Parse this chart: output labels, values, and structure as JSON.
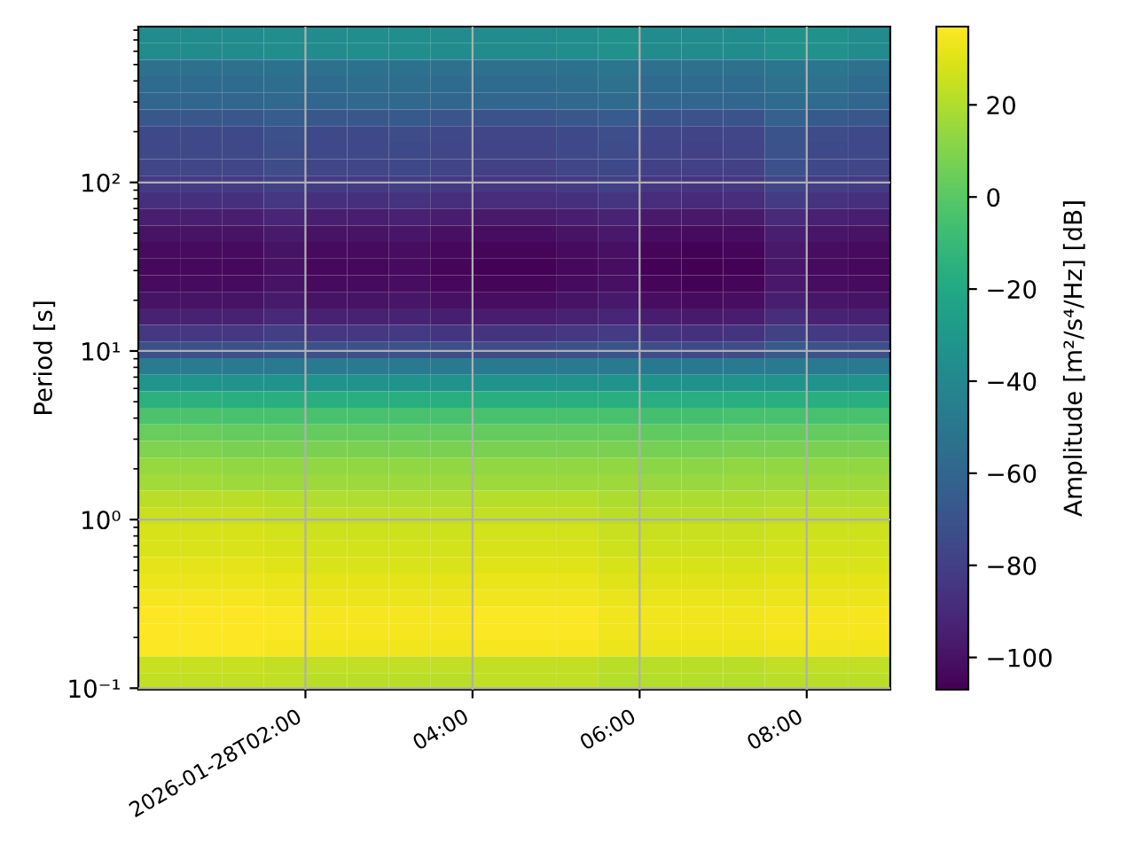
{
  "chart_data": {
    "type": "heatmap",
    "ylabel": "Period [s]",
    "clabel": "Amplitude [m²/s⁴/Hz] [dB]",
    "x": [
      "2026-01-28T00:15",
      "2026-01-28T00:45",
      "2026-01-28T01:15",
      "2026-01-28T01:45",
      "2026-01-28T02:15",
      "2026-01-28T02:45",
      "2026-01-28T03:15",
      "2026-01-28T03:45",
      "2026-01-28T04:15",
      "2026-01-28T04:45",
      "2026-01-28T05:15",
      "2026-01-28T05:45",
      "2026-01-28T06:15",
      "2026-01-28T06:45",
      "2026-01-28T07:15",
      "2026-01-28T07:45",
      "2026-01-28T08:15",
      "2026-01-28T08:45"
    ],
    "xlim": [
      "2026-01-28T00:00",
      "2026-01-28T09:00"
    ],
    "xticks": [
      {
        "value": "2026-01-28T02:00",
        "label": "2026-01-28T02:00"
      },
      {
        "value": "2026-01-28T04:00",
        "label": "04:00"
      },
      {
        "value": "2026-01-28T06:00",
        "label": "06:00"
      },
      {
        "value": "2026-01-28T08:00",
        "label": "08:00"
      }
    ],
    "log": "y",
    "ylim": [
      0.098,
      840
    ],
    "yticks": [
      {
        "value": 0.1,
        "label": "10⁻¹"
      },
      {
        "value": 1,
        "label": "10⁰"
      },
      {
        "value": 10,
        "label": "10¹"
      },
      {
        "value": 100,
        "label": "10²"
      },
      {
        "value": 0.2,
        "label": null
      },
      {
        "value": 0.3,
        "label": null
      },
      {
        "value": 0.4,
        "label": null
      },
      {
        "value": 0.5,
        "label": null
      },
      {
        "value": 0.6,
        "label": null
      },
      {
        "value": 0.7,
        "label": null
      },
      {
        "value": 0.8,
        "label": null
      },
      {
        "value": 0.9,
        "label": null
      },
      {
        "value": 2,
        "label": null
      },
      {
        "value": 3,
        "label": null
      },
      {
        "value": 4,
        "label": null
      },
      {
        "value": 5,
        "label": null
      },
      {
        "value": 6,
        "label": null
      },
      {
        "value": 7,
        "label": null
      },
      {
        "value": 8,
        "label": null
      },
      {
        "value": 9,
        "label": null
      },
      {
        "value": 20,
        "label": null
      },
      {
        "value": 30,
        "label": null
      },
      {
        "value": 40,
        "label": null
      },
      {
        "value": 50,
        "label": null
      },
      {
        "value": 60,
        "label": null
      },
      {
        "value": 70,
        "label": null
      },
      {
        "value": 80,
        "label": null
      },
      {
        "value": 90,
        "label": null
      },
      {
        "value": 200,
        "label": null
      },
      {
        "value": 300,
        "label": null
      },
      {
        "value": 400,
        "label": null
      },
      {
        "value": 500,
        "label": null
      },
      {
        "value": 600,
        "label": null
      },
      {
        "value": 700,
        "label": null
      },
      {
        "value": 800,
        "label": null
      }
    ],
    "clim": [
      -107,
      37
    ],
    "cticks": [
      -100,
      -80,
      -60,
      -40,
      -20,
      0,
      20
    ],
    "grid": true,
    "cells": [
      [
        -38,
        -38,
        -38,
        -37,
        -38,
        -37,
        -37,
        -38,
        -38,
        -38,
        -37,
        -35,
        -38,
        -38,
        -38,
        -35,
        -35,
        -38
      ],
      [
        -38,
        -38,
        -38,
        -37,
        -38,
        -37,
        -37,
        -38,
        -38,
        -38,
        -37,
        -35,
        -38,
        -38,
        -38,
        -35,
        -35,
        -38
      ],
      [
        -54,
        -54,
        -54,
        -53,
        -54,
        -53,
        -53,
        -54,
        -54,
        -54,
        -53,
        -51,
        -54,
        -54,
        -54,
        -51,
        -51,
        -54
      ],
      [
        -57,
        -57,
        -57,
        -56,
        -57,
        -56,
        -56,
        -57,
        -57,
        -57,
        -56,
        -54,
        -57,
        -57,
        -57,
        -54,
        -54,
        -57
      ],
      [
        -60,
        -60,
        -60,
        -59,
        -60,
        -59,
        -59,
        -60,
        -60,
        -60,
        -59,
        -57,
        -60,
        -60,
        -60,
        -57,
        -57,
        -60
      ],
      [
        -68,
        -68,
        -68,
        -65,
        -68,
        -68,
        -67,
        -69,
        -70,
        -70,
        -68,
        -66,
        -70,
        -71,
        -70,
        -63,
        -67,
        -68
      ],
      [
        -75,
        -75,
        -75,
        -72,
        -75,
        -75,
        -74,
        -76,
        -77,
        -77,
        -75,
        -73,
        -77,
        -78,
        -77,
        -70,
        -74,
        -75
      ],
      [
        -76,
        -76,
        -76,
        -73,
        -76,
        -76,
        -75,
        -77,
        -78,
        -78,
        -76,
        -74,
        -78,
        -79,
        -78,
        -71,
        -75,
        -76
      ],
      [
        -77,
        -77,
        -77,
        -74,
        -77,
        -77,
        -76,
        -78,
        -79,
        -79,
        -77,
        -75,
        -79,
        -80,
        -79,
        -72,
        -76,
        -77
      ],
      [
        -82,
        -82,
        -82,
        -79,
        -82,
        -82,
        -81,
        -83,
        -84,
        -84,
        -82,
        -80,
        -84,
        -85,
        -84,
        -77,
        -81,
        -82
      ],
      [
        -87,
        -87,
        -87,
        -84,
        -87,
        -87,
        -86,
        -88,
        -89,
        -89,
        -87,
        -85,
        -89,
        -90,
        -89,
        -82,
        -86,
        -87
      ],
      [
        -95,
        -95,
        -95,
        -92,
        -95,
        -95,
        -94,
        -96,
        -97,
        -97,
        -95,
        -93,
        -97,
        -98,
        -97,
        -90,
        -94,
        -95
      ],
      [
        -100,
        -100,
        -100,
        -97,
        -100,
        -100,
        -99,
        -101,
        -102,
        -102,
        -100,
        -98,
        -102,
        -103,
        -102,
        -95,
        -99,
        -100
      ],
      [
        -103,
        -103,
        -103,
        -100,
        -103,
        -103,
        -102,
        -104,
        -105,
        -105,
        -103,
        -101,
        -105,
        -106,
        -105,
        -98,
        -102,
        -103
      ],
      [
        -104,
        -104,
        -104,
        -101,
        -104,
        -104,
        -103,
        -105,
        -106,
        -106,
        -104,
        -102,
        -106,
        -107,
        -106,
        -99,
        -103,
        -104
      ],
      [
        -103,
        -103,
        -103,
        -100,
        -103,
        -103,
        -102,
        -104,
        -105,
        -105,
        -103,
        -101,
        -105,
        -106,
        -105,
        -98,
        -102,
        -103
      ],
      [
        -100,
        -100,
        -100,
        -97,
        -100,
        -100,
        -99,
        -101,
        -102,
        -102,
        -100,
        -98,
        -102,
        -103,
        -102,
        -95,
        -99,
        -100
      ],
      [
        -94,
        -94,
        -94,
        -91,
        -94,
        -94,
        -93,
        -95,
        -96,
        -96,
        -94,
        -92,
        -96,
        -97,
        -96,
        -89,
        -93,
        -94
      ],
      [
        -84,
        -84,
        -84,
        -81,
        -84,
        -84,
        -83,
        -85,
        -86,
        -86,
        -84,
        -82,
        -86,
        -87,
        -86,
        -79,
        -83,
        -84
      ],
      [
        -72,
        -72,
        -72,
        -69,
        -72,
        -72,
        -71,
        -73,
        -74,
        -74,
        -72,
        -70,
        -74,
        -75,
        -74,
        -67,
        -71,
        -72
      ],
      [
        -47,
        -47,
        -48,
        -48,
        -48,
        -48,
        -48,
        -48,
        -48,
        -48,
        -48,
        -48,
        -49,
        -49,
        -48,
        -48,
        -48,
        -48
      ],
      [
        -32,
        -32,
        -33,
        -33,
        -33,
        -33,
        -33,
        -33,
        -33,
        -33,
        -33,
        -33,
        -34,
        -34,
        -33,
        -33,
        -33,
        -33
      ],
      [
        -15,
        -15,
        -16,
        -16,
        -16,
        -16,
        -16,
        -16,
        -16,
        -16,
        -16,
        -16,
        -17,
        -17,
        -16,
        -16,
        -16,
        -16
      ],
      [
        -4,
        -4,
        -5,
        -5,
        -5,
        -5,
        -5,
        -5,
        -5,
        -5,
        -5,
        -5,
        -6,
        -6,
        -5,
        -5,
        -5,
        -5
      ],
      [
        4,
        4,
        3,
        3,
        3,
        3,
        3,
        3,
        3,
        3,
        3,
        3,
        2,
        2,
        3,
        3,
        3,
        3
      ],
      [
        9,
        9,
        8,
        8,
        8,
        8,
        8,
        8,
        8,
        8,
        8,
        8,
        7,
        7,
        8,
        8,
        8,
        8
      ],
      [
        14,
        14,
        13,
        13,
        13,
        13,
        13,
        13,
        13,
        13,
        13,
        13,
        12,
        12,
        13,
        13,
        13,
        13
      ],
      [
        17,
        17,
        16,
        16,
        16,
        16,
        16,
        16,
        16,
        16,
        16,
        16,
        15,
        15,
        16,
        16,
        16,
        16
      ],
      [
        22,
        22,
        22,
        21,
        20,
        20,
        20,
        20,
        21,
        21,
        21,
        19,
        19,
        19,
        19,
        20,
        20,
        20
      ],
      [
        25,
        25,
        25,
        24,
        23,
        23,
        23,
        23,
        24,
        24,
        24,
        22,
        22,
        22,
        22,
        23,
        23,
        23
      ],
      [
        28,
        28,
        28,
        27,
        26,
        26,
        26,
        26,
        27,
        27,
        27,
        25,
        25,
        25,
        25,
        26,
        26,
        26
      ],
      [
        29,
        29,
        29,
        28,
        27,
        27,
        27,
        27,
        28,
        28,
        28,
        26,
        26,
        26,
        26,
        27,
        27,
        27
      ],
      [
        31,
        31,
        31,
        30,
        29,
        29,
        29,
        29,
        30,
        30,
        30,
        28,
        28,
        28,
        28,
        29,
        29,
        29
      ],
      [
        33,
        33,
        33,
        32,
        31,
        31,
        31,
        31,
        32,
        32,
        32,
        30,
        30,
        30,
        30,
        31,
        31,
        31
      ],
      [
        35,
        35,
        35,
        34,
        33,
        33,
        33,
        33,
        34,
        34,
        34,
        32,
        32,
        32,
        32,
        33,
        33,
        33
      ],
      [
        37,
        37,
        37,
        36,
        35,
        35,
        35,
        35,
        36,
        36,
        36,
        34,
        34,
        34,
        34,
        35,
        35,
        35
      ],
      [
        37,
        37,
        37,
        36,
        35,
        35,
        35,
        35,
        36,
        36,
        36,
        34,
        34,
        34,
        34,
        35,
        35,
        35
      ],
      [
        36,
        36,
        36,
        35,
        34,
        34,
        34,
        34,
        35,
        35,
        35,
        33,
        33,
        33,
        33,
        34,
        34,
        34
      ],
      [
        25,
        25,
        25,
        24,
        23,
        23,
        23,
        23,
        24,
        24,
        24,
        22,
        22,
        22,
        22,
        23,
        23,
        23
      ],
      [
        24,
        24,
        24,
        23,
        22,
        22,
        22,
        22,
        23,
        23,
        23,
        21,
        21,
        21,
        21,
        22,
        22,
        22
      ]
    ]
  }
}
